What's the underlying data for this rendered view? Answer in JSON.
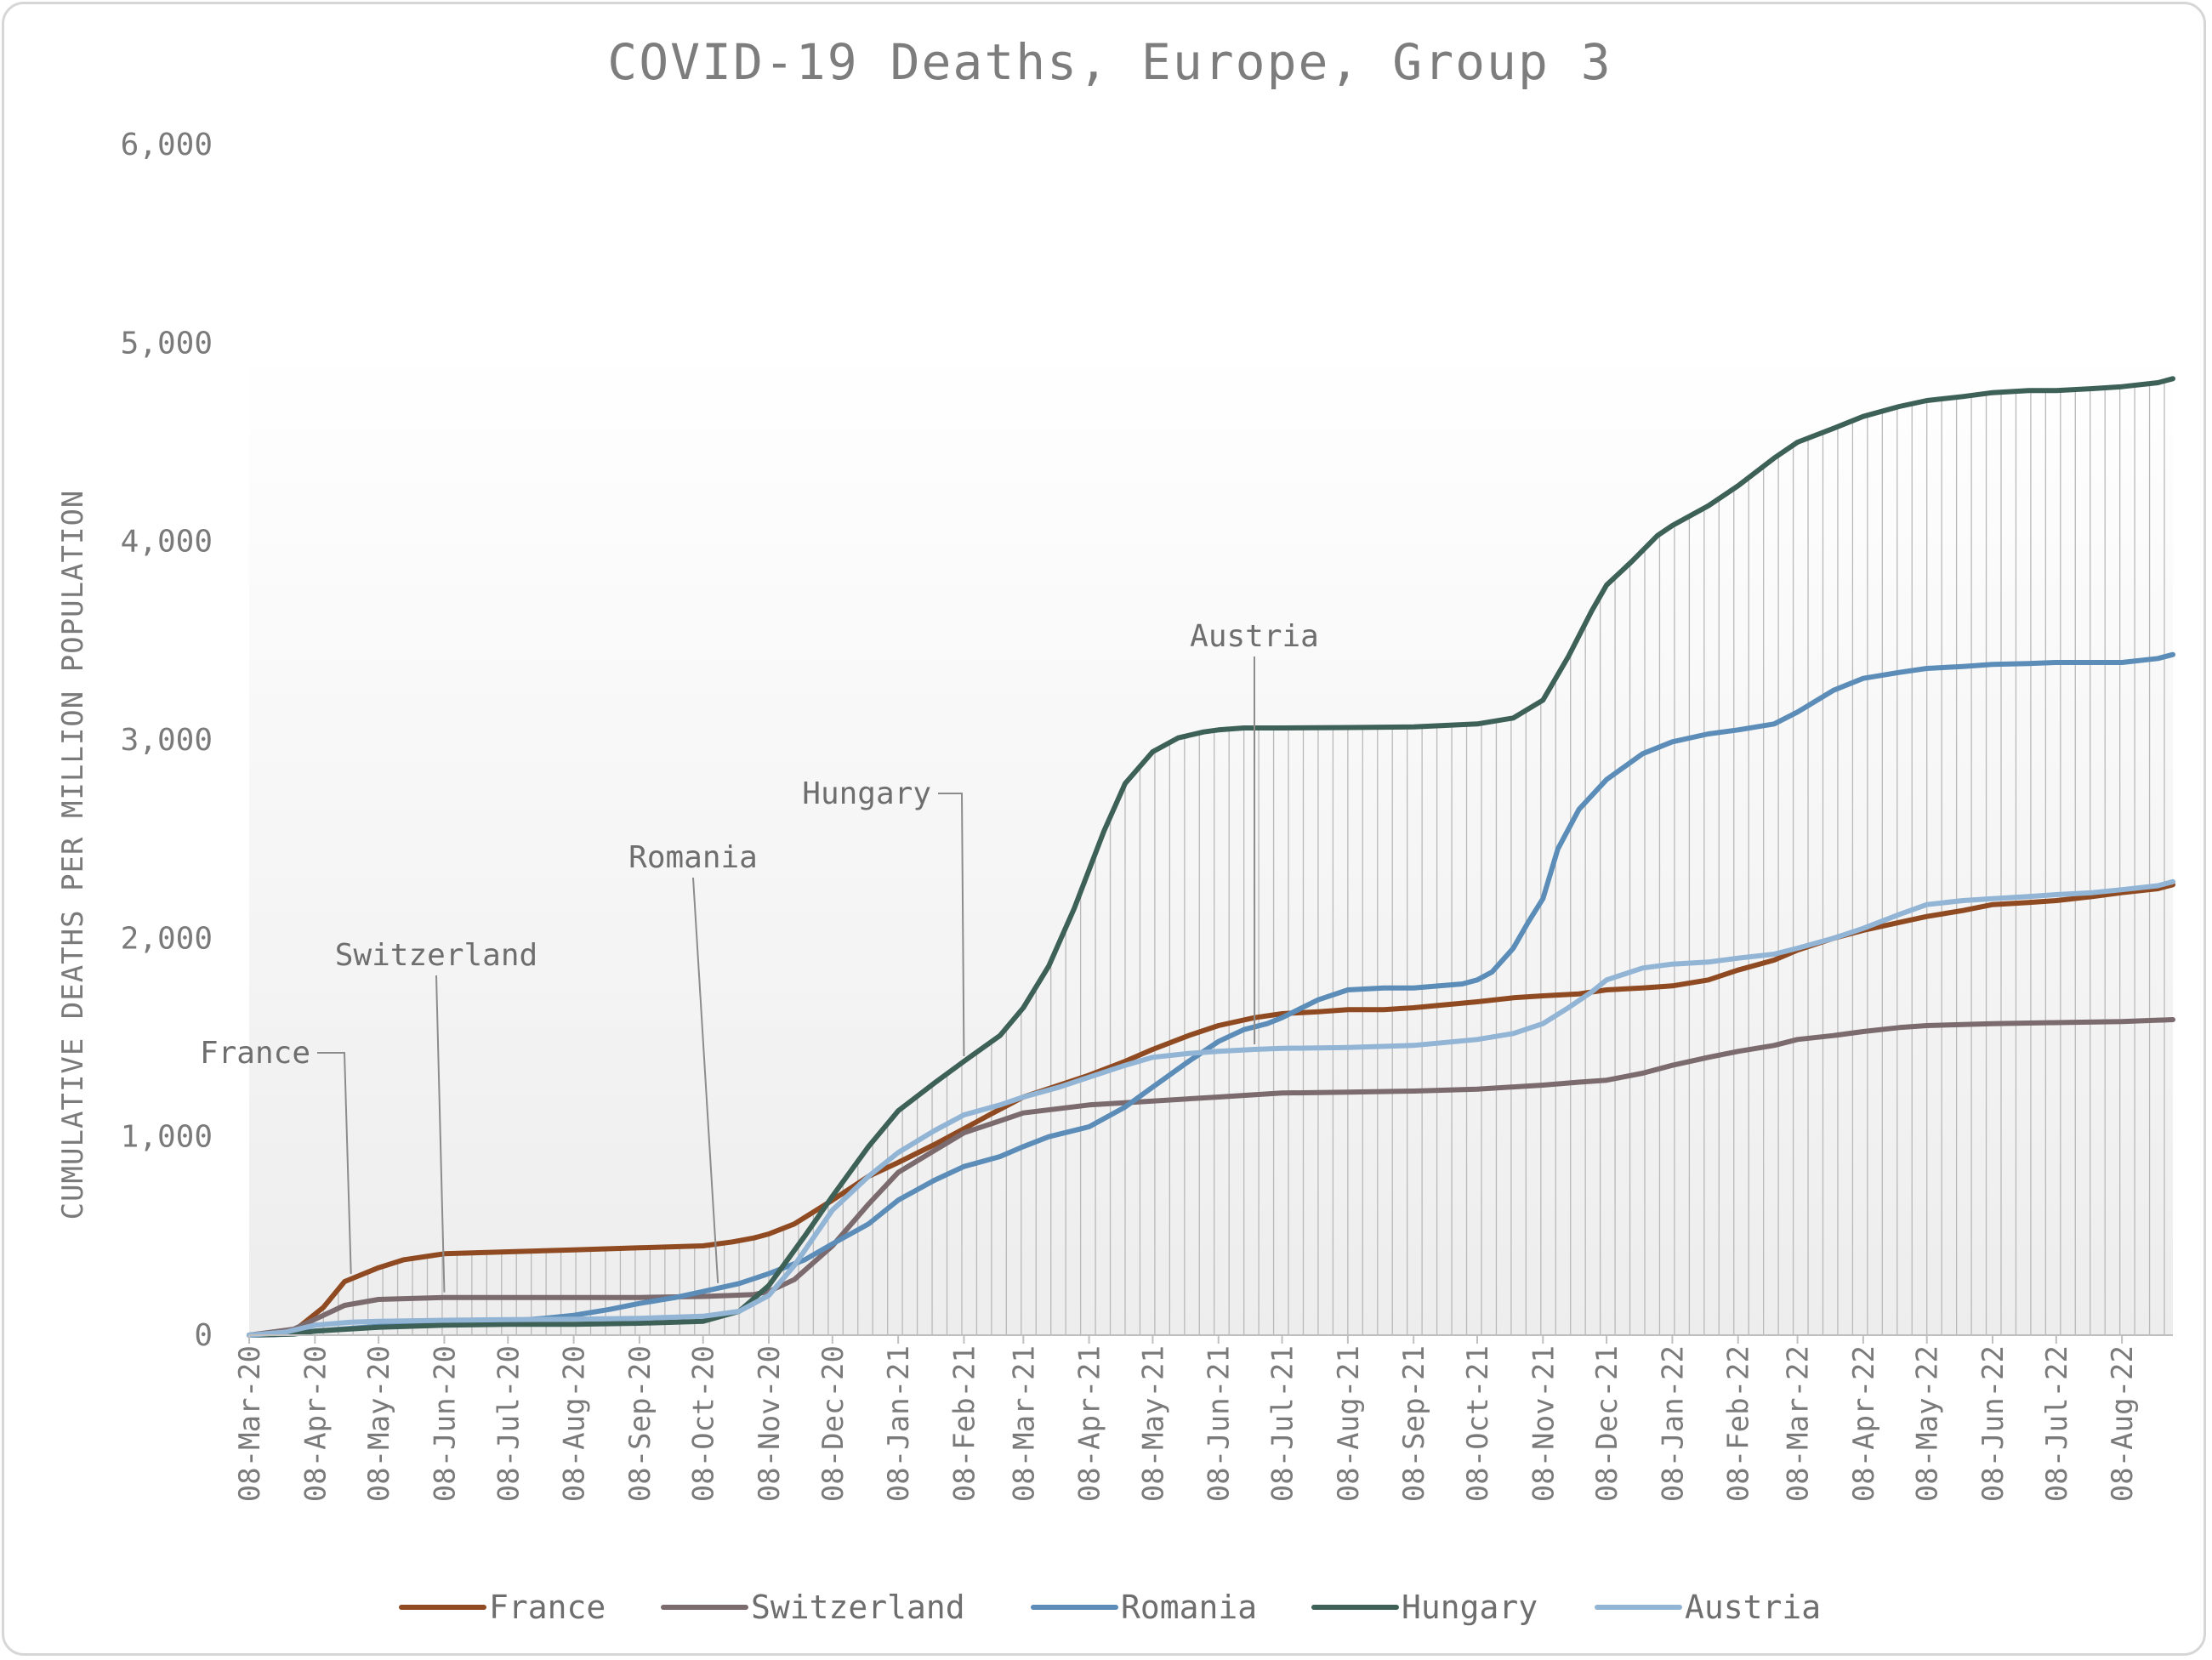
{
  "chart_data": {
    "type": "line",
    "title": "COVID-19 Deaths, Europe, Group 3",
    "ylabel": "CUMULATIVE DEATHS PER MILLION POPULATION",
    "xlabel": "",
    "ylim": [
      0,
      6000
    ],
    "yticks": [
      0,
      1000,
      2000,
      3000,
      4000,
      5000,
      6000
    ],
    "ytick_labels": [
      "0",
      "1,000",
      "2,000",
      "3,000",
      "4,000",
      "5,000",
      "6,000"
    ],
    "x_start": "2020-03-08",
    "x_end": "2022-09-01",
    "xtick_labels": [
      "08-Mar-20",
      "08-Apr-20",
      "08-May-20",
      "08-Jun-20",
      "08-Jul-20",
      "08-Aug-20",
      "08-Sep-20",
      "08-Oct-20",
      "08-Nov-20",
      "08-Dec-20",
      "08-Jan-21",
      "08-Feb-21",
      "08-Mar-21",
      "08-Apr-21",
      "08-May-21",
      "08-Jun-21",
      "08-Jul-21",
      "08-Aug-21",
      "08-Sep-21",
      "08-Oct-21",
      "08-Nov-21",
      "08-Dec-21",
      "08-Jan-22",
      "08-Feb-22",
      "08-Mar-22",
      "08-Apr-22",
      "08-May-22",
      "08-Jun-22",
      "08-Jul-22",
      "08-Aug-22"
    ],
    "grid": "vertical drop lines to highest series",
    "legend_position": "bottom",
    "series": [
      {
        "name": "France",
        "color": "#8f4a22",
        "x": [
          "2020-03-08",
          "2020-03-29",
          "2020-04-12",
          "2020-04-22",
          "2020-05-08",
          "2020-05-20",
          "2020-06-08",
          "2020-07-08",
          "2020-08-08",
          "2020-09-08",
          "2020-10-08",
          "2020-10-22",
          "2020-11-01",
          "2020-11-08",
          "2020-11-20",
          "2020-12-08",
          "2020-12-25",
          "2021-01-08",
          "2021-01-25",
          "2021-02-08",
          "2021-02-20",
          "2021-03-08",
          "2021-03-25",
          "2021-04-08",
          "2021-04-25",
          "2021-05-08",
          "2021-05-25",
          "2021-06-08",
          "2021-06-25",
          "2021-07-08",
          "2021-07-25",
          "2021-08-08",
          "2021-08-25",
          "2021-09-08",
          "2021-10-08",
          "2021-10-25",
          "2021-11-08",
          "2021-11-25",
          "2021-12-08",
          "2021-12-25",
          "2022-01-08",
          "2022-01-25",
          "2022-02-08",
          "2022-02-25",
          "2022-03-08",
          "2022-03-25",
          "2022-04-08",
          "2022-04-25",
          "2022-05-08",
          "2022-05-25",
          "2022-06-08",
          "2022-06-25",
          "2022-07-08",
          "2022-07-25",
          "2022-08-08",
          "2022-08-25",
          "2022-09-01"
        ],
        "y": [
          0,
          20,
          140,
          270,
          340,
          380,
          410,
          420,
          430,
          440,
          450,
          470,
          490,
          510,
          560,
          680,
          800,
          870,
          960,
          1040,
          1110,
          1200,
          1260,
          1310,
          1380,
          1440,
          1510,
          1560,
          1600,
          1620,
          1630,
          1640,
          1640,
          1650,
          1680,
          1700,
          1710,
          1720,
          1740,
          1750,
          1760,
          1790,
          1840,
          1890,
          1940,
          2000,
          2040,
          2080,
          2110,
          2140,
          2170,
          2180,
          2190,
          2210,
          2230,
          2250,
          2270
        ]
      },
      {
        "name": "Switzerland",
        "color": "#7b6a6e",
        "x": [
          "2020-03-08",
          "2020-03-29",
          "2020-04-12",
          "2020-04-22",
          "2020-05-08",
          "2020-06-08",
          "2020-07-08",
          "2020-08-08",
          "2020-09-08",
          "2020-10-08",
          "2020-10-22",
          "2020-11-01",
          "2020-11-08",
          "2020-11-20",
          "2020-12-08",
          "2020-12-25",
          "2021-01-08",
          "2021-01-25",
          "2021-02-08",
          "2021-02-25",
          "2021-03-08",
          "2021-04-08",
          "2021-05-08",
          "2021-06-08",
          "2021-07-08",
          "2021-08-08",
          "2021-09-08",
          "2021-10-08",
          "2021-11-08",
          "2021-11-25",
          "2021-12-08",
          "2021-12-25",
          "2022-01-08",
          "2022-01-25",
          "2022-02-08",
          "2022-02-25",
          "2022-03-08",
          "2022-03-25",
          "2022-04-08",
          "2022-04-25",
          "2022-05-08",
          "2022-06-08",
          "2022-07-08",
          "2022-08-08",
          "2022-09-01"
        ],
        "y": [
          0,
          30,
          100,
          150,
          180,
          190,
          190,
          190,
          190,
          195,
          200,
          205,
          220,
          280,
          450,
          660,
          820,
          930,
          1020,
          1080,
          1120,
          1160,
          1180,
          1200,
          1220,
          1225,
          1230,
          1240,
          1260,
          1275,
          1285,
          1320,
          1360,
          1400,
          1430,
          1460,
          1490,
          1510,
          1530,
          1550,
          1560,
          1570,
          1575,
          1580,
          1590
        ]
      },
      {
        "name": "Romania",
        "color": "#5b8db8",
        "x": [
          "2020-03-08",
          "2020-03-20",
          "2020-04-08",
          "2020-05-08",
          "2020-06-08",
          "2020-07-08",
          "2020-07-25",
          "2020-08-08",
          "2020-08-25",
          "2020-09-08",
          "2020-09-25",
          "2020-10-08",
          "2020-10-25",
          "2020-11-08",
          "2020-11-25",
          "2020-12-08",
          "2020-12-25",
          "2021-01-08",
          "2021-01-25",
          "2021-02-08",
          "2021-02-25",
          "2021-03-08",
          "2021-03-20",
          "2021-04-08",
          "2021-04-25",
          "2021-05-08",
          "2021-05-25",
          "2021-06-08",
          "2021-06-20",
          "2021-07-01",
          "2021-07-08",
          "2021-07-25",
          "2021-08-08",
          "2021-08-25",
          "2021-09-08",
          "2021-09-20",
          "2021-10-01",
          "2021-10-08",
          "2021-10-15",
          "2021-10-25",
          "2021-11-01",
          "2021-11-08",
          "2021-11-15",
          "2021-11-25",
          "2021-12-08",
          "2021-12-25",
          "2022-01-08",
          "2022-01-25",
          "2022-02-08",
          "2022-02-25",
          "2022-03-08",
          "2022-03-25",
          "2022-04-08",
          "2022-04-25",
          "2022-05-08",
          "2022-05-25",
          "2022-06-08",
          "2022-06-25",
          "2022-07-08",
          "2022-07-25",
          "2022-08-08",
          "2022-08-25",
          "2022-09-01"
        ],
        "y": [
          0,
          2,
          20,
          45,
          55,
          70,
          85,
          100,
          130,
          160,
          190,
          220,
          260,
          310,
          380,
          460,
          560,
          680,
          780,
          850,
          900,
          950,
          1000,
          1050,
          1150,
          1250,
          1380,
          1480,
          1540,
          1570,
          1600,
          1690,
          1740,
          1750,
          1750,
          1760,
          1770,
          1790,
          1830,
          1950,
          2080,
          2200,
          2450,
          2650,
          2800,
          2930,
          2990,
          3030,
          3050,
          3080,
          3140,
          3250,
          3310,
          3340,
          3360,
          3370,
          3380,
          3385,
          3390,
          3390,
          3390,
          3410,
          3430
        ]
      },
      {
        "name": "Hungary",
        "color": "#3e6157",
        "x": [
          "2020-03-08",
          "2020-03-29",
          "2020-04-08",
          "2020-05-08",
          "2020-06-08",
          "2020-07-08",
          "2020-08-08",
          "2020-09-08",
          "2020-10-08",
          "2020-10-25",
          "2020-11-08",
          "2020-11-25",
          "2020-12-08",
          "2020-12-25",
          "2021-01-08",
          "2021-01-25",
          "2021-02-08",
          "2021-02-25",
          "2021-03-08",
          "2021-03-20",
          "2021-04-01",
          "2021-04-15",
          "2021-04-25",
          "2021-05-08",
          "2021-05-20",
          "2021-06-01",
          "2021-06-08",
          "2021-06-20",
          "2021-07-08",
          "2021-08-08",
          "2021-09-08",
          "2021-10-08",
          "2021-10-25",
          "2021-11-08",
          "2021-11-20",
          "2021-12-01",
          "2021-12-08",
          "2021-12-20",
          "2022-01-01",
          "2022-01-08",
          "2022-01-25",
          "2022-02-08",
          "2022-02-25",
          "2022-03-08",
          "2022-03-25",
          "2022-04-08",
          "2022-04-25",
          "2022-05-08",
          "2022-05-25",
          "2022-06-08",
          "2022-06-25",
          "2022-07-08",
          "2022-07-25",
          "2022-08-08",
          "2022-08-25",
          "2022-09-01"
        ],
        "y": [
          0,
          5,
          20,
          40,
          50,
          55,
          55,
          60,
          70,
          120,
          250,
          500,
          700,
          950,
          1130,
          1270,
          1380,
          1510,
          1650,
          1860,
          2150,
          2540,
          2780,
          2940,
          3010,
          3040,
          3050,
          3060,
          3060,
          3062,
          3065,
          3080,
          3110,
          3200,
          3420,
          3650,
          3780,
          3900,
          4030,
          4080,
          4180,
          4280,
          4420,
          4500,
          4570,
          4630,
          4680,
          4710,
          4730,
          4750,
          4760,
          4760,
          4770,
          4780,
          4800,
          4820
        ]
      },
      {
        "name": "Austria",
        "color": "#92b4d5",
        "x": [
          "2020-03-08",
          "2020-03-25",
          "2020-04-08",
          "2020-04-25",
          "2020-05-08",
          "2020-06-08",
          "2020-07-08",
          "2020-08-08",
          "2020-09-08",
          "2020-10-08",
          "2020-10-25",
          "2020-11-08",
          "2020-11-20",
          "2020-12-08",
          "2020-12-25",
          "2021-01-08",
          "2021-01-25",
          "2021-02-08",
          "2021-02-25",
          "2021-03-08",
          "2021-03-25",
          "2021-04-08",
          "2021-04-25",
          "2021-05-08",
          "2021-05-25",
          "2021-06-08",
          "2021-06-25",
          "2021-07-08",
          "2021-08-08",
          "2021-09-08",
          "2021-10-08",
          "2021-10-25",
          "2021-11-08",
          "2021-11-20",
          "2021-12-01",
          "2021-12-08",
          "2021-12-25",
          "2022-01-08",
          "2022-01-25",
          "2022-02-08",
          "2022-02-25",
          "2022-03-08",
          "2022-03-25",
          "2022-04-08",
          "2022-04-25",
          "2022-05-08",
          "2022-05-25",
          "2022-06-08",
          "2022-06-25",
          "2022-07-08",
          "2022-07-25",
          "2022-08-08",
          "2022-08-25",
          "2022-09-01"
        ],
        "y": [
          0,
          15,
          50,
          65,
          70,
          75,
          78,
          80,
          85,
          95,
          120,
          200,
          350,
          630,
          800,
          920,
          1030,
          1110,
          1160,
          1200,
          1250,
          1300,
          1360,
          1400,
          1420,
          1430,
          1440,
          1445,
          1450,
          1460,
          1490,
          1520,
          1570,
          1650,
          1730,
          1790,
          1850,
          1870,
          1880,
          1900,
          1920,
          1950,
          2000,
          2050,
          2120,
          2170,
          2190,
          2200,
          2210,
          2220,
          2230,
          2245,
          2265,
          2285
        ]
      }
    ],
    "annotations": [
      {
        "label": "France",
        "series": "France",
        "at": "2020-04-25"
      },
      {
        "label": "Switzerland",
        "series": "Switzerland",
        "at": "2020-06-08"
      },
      {
        "label": "Romania",
        "series": "Romania",
        "at": "2020-10-15"
      },
      {
        "label": "Hungary",
        "series": "Hungary",
        "at": "2021-02-08"
      },
      {
        "label": "Austria",
        "series": "Austria",
        "at": "2021-06-25"
      }
    ]
  }
}
